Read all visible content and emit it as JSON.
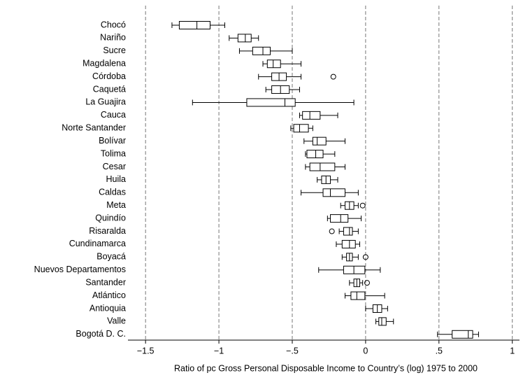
{
  "chart_data": {
    "type": "boxplot",
    "xlabel": "Ratio of pc Gross Personal Disposable Income to Country’s (log) 1975 to 2000",
    "categories": [
      "Chocó",
      "Nariño",
      "Sucre",
      "Magdalena",
      "Córdoba",
      "Caquetá",
      "La Guajira",
      "Cauca",
      "Norte Santander",
      "Bolívar",
      "Tolima",
      "Cesar",
      "Huila",
      "Caldas",
      "Meta",
      "Quindío",
      "Risaralda",
      "Cundinamarca",
      "Boyacá",
      "Nuevos Departamentos",
      "Santander",
      "Atlántico",
      "Antioquia",
      "Valle",
      "Bogotá D. C."
    ],
    "boxes": [
      [
        -1.32,
        -1.27,
        -1.15,
        -1.06,
        -0.96
      ],
      [
        -0.93,
        -0.87,
        -0.82,
        -0.78,
        -0.73
      ],
      [
        -0.86,
        -0.77,
        -0.7,
        -0.65,
        -0.5
      ],
      [
        -0.7,
        -0.67,
        -0.63,
        -0.58,
        -0.44
      ],
      [
        -0.73,
        -0.64,
        -0.59,
        -0.54,
        -0.44
      ],
      [
        -0.68,
        -0.64,
        -0.58,
        -0.52,
        -0.45
      ],
      [
        -1.18,
        -0.81,
        -0.55,
        -0.48,
        -0.08
      ],
      [
        -0.45,
        -0.43,
        -0.38,
        -0.31,
        -0.19
      ],
      [
        -0.51,
        -0.49,
        -0.45,
        -0.39,
        -0.36
      ],
      [
        -0.42,
        -0.36,
        -0.33,
        -0.27,
        -0.14
      ],
      [
        -0.41,
        -0.4,
        -0.34,
        -0.29,
        -0.21
      ],
      [
        -0.41,
        -0.38,
        -0.31,
        -0.21,
        -0.14
      ],
      [
        -0.33,
        -0.3,
        -0.27,
        -0.24,
        -0.19
      ],
      [
        -0.44,
        -0.29,
        -0.24,
        -0.14,
        -0.05
      ],
      [
        -0.17,
        -0.14,
        -0.11,
        -0.08,
        -0.05
      ],
      [
        -0.26,
        -0.24,
        -0.17,
        -0.12,
        -0.03
      ],
      [
        -0.18,
        -0.15,
        -0.11,
        -0.09,
        -0.05
      ],
      [
        -0.2,
        -0.16,
        -0.11,
        -0.07,
        -0.04
      ],
      [
        -0.16,
        -0.13,
        -0.11,
        -0.09,
        -0.05
      ],
      [
        -0.32,
        -0.15,
        -0.08,
        -0.005,
        0.1
      ],
      [
        -0.11,
        -0.08,
        -0.06,
        -0.04,
        -0.02
      ],
      [
        -0.14,
        -0.1,
        -0.06,
        -0.005,
        0.13
      ],
      [
        0.0,
        0.05,
        0.08,
        0.11,
        0.15
      ],
      [
        0.07,
        0.09,
        0.11,
        0.14,
        0.19
      ],
      [
        0.49,
        0.59,
        0.7,
        0.73,
        0.77
      ]
    ],
    "outliers": [
      [],
      [],
      [],
      [],
      [
        -0.22
      ],
      [],
      [],
      [],
      [],
      [],
      [],
      [],
      [],
      [],
      [
        -0.02
      ],
      [],
      [
        -0.23
      ],
      [],
      [
        0
      ],
      [],
      [
        0.01
      ],
      [],
      [],
      [],
      []
    ],
    "xlim": [
      -1.62,
      1.03
    ],
    "xticks": [
      {
        "value": -1.5,
        "label": "−1.5"
      },
      {
        "value": -1,
        "label": "−1"
      },
      {
        "value": -0.5,
        "label": "−.5"
      },
      0,
      {
        "value": 0.5,
        "label": ".5"
      },
      1
    ],
    "grid": true
  }
}
